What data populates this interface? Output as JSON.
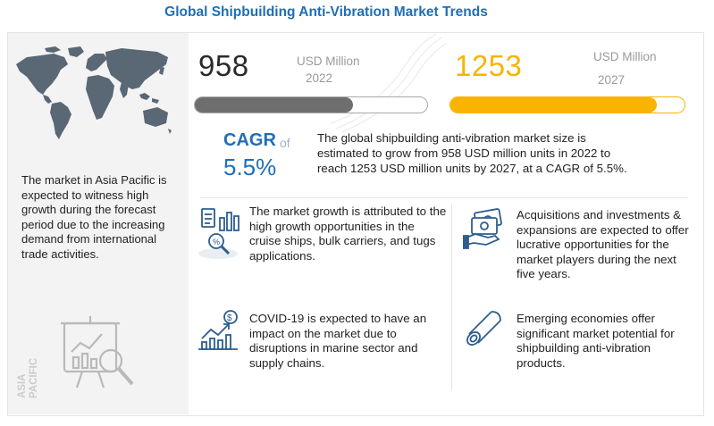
{
  "header": {
    "title": "Global Shipbuilding Anti-Vibration Market Trends"
  },
  "colors": {
    "title_blue": "#1f6fb5",
    "accent_yellow": "#f8b400",
    "bar_gray": "#6e6e6e"
  },
  "market": {
    "value_2022": "958",
    "unit_2022": "USD Million",
    "year_2022": "2022",
    "value_2027": "1253",
    "unit_2027": "USD Million",
    "year_2027": "2027",
    "bar_fill_2022": 0.68,
    "bar_fill_2027": 0.88
  },
  "cagr": {
    "label": "CAGR",
    "of": "of",
    "value": "5.5%",
    "description": "The global shipbuilding  anti-vibration market size is estimated to grow from 958 USD million  units in 2022 to reach 1253 USD million  units by 2027, at a CAGR of 5.5%."
  },
  "asia_pacific": {
    "text": "The market in Asia Pacific is expected to witness high growth during the forecast period due to the increasing demand from international trade activities.",
    "vertical_label_1": "ASIA",
    "vertical_label_2": "PACIFIC"
  },
  "points": [
    {
      "icon": "analytics-magnifier-icon",
      "text": "The market growth is attributed to the high growth opportunities in the cruise ships, bulk carriers,  and tugs applications."
    },
    {
      "icon": "money-hand-icon",
      "text": "Acquisitions and investments & expansions are expected to offer lucrative opportunities for the market players during the next five years."
    },
    {
      "icon": "growth-chart-dollar-icon",
      "text": "COVID-19 is expected to have an impact on the market due to disruptions in marine sector and supply chains."
    },
    {
      "icon": "cylinder-pipe-icon",
      "text": "Emerging economies offer significant market potential for shipbuilding  anti-vibration products."
    }
  ]
}
